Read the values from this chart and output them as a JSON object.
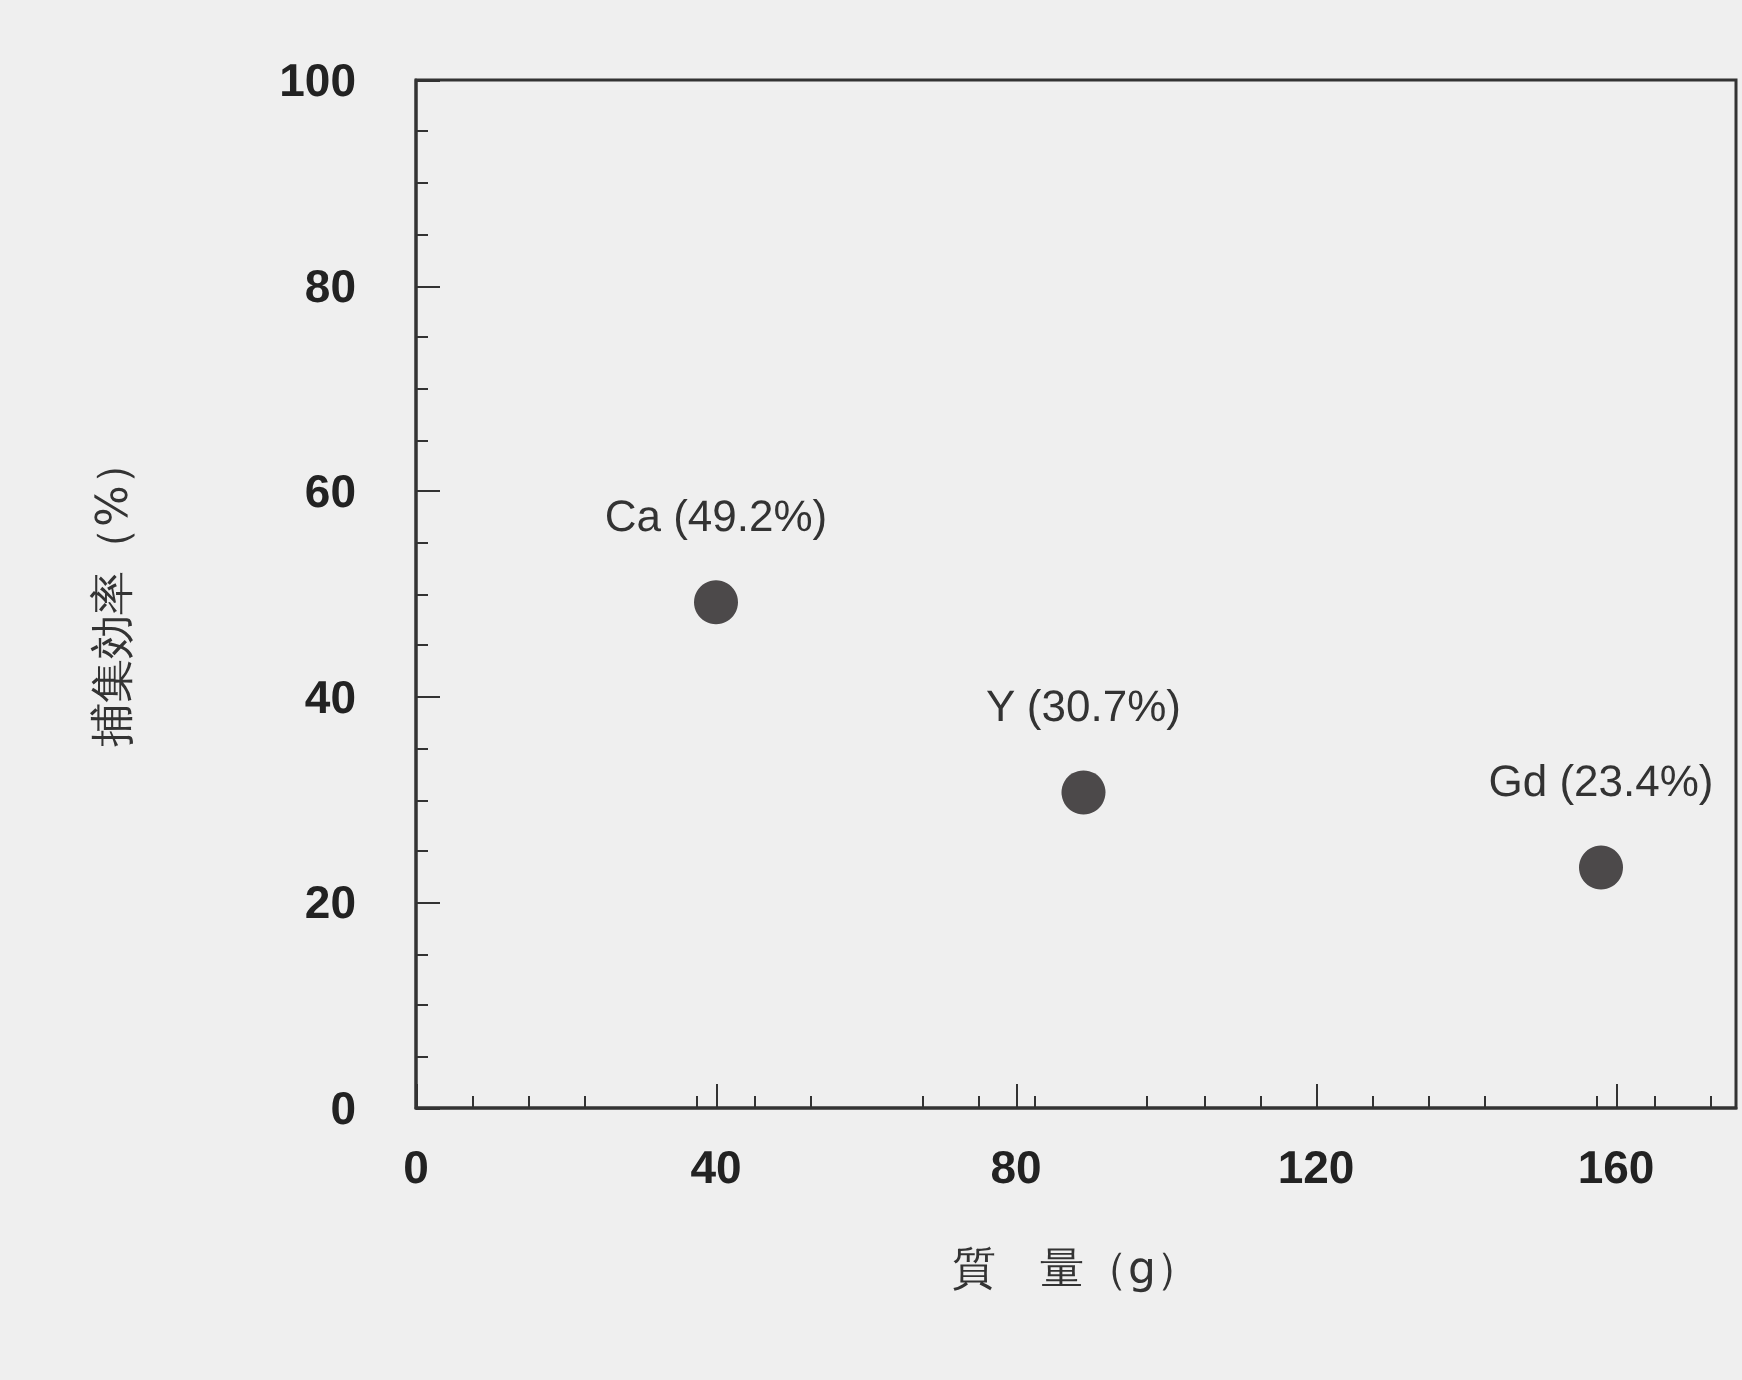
{
  "chart_data": {
    "type": "scatter",
    "xlabel": "質　量（g）",
    "ylabel": "捕集効率（%）",
    "x": [
      40,
      89,
      158
    ],
    "values": [
      49.2,
      30.7,
      23.4
    ],
    "color": "#231f20",
    "marker": "circle",
    "xlim": [
      0,
      176
    ],
    "xticks": [
      0,
      40,
      80,
      120,
      160
    ],
    "ylim": [
      0,
      100
    ],
    "yticks": [
      0,
      20,
      40,
      60,
      80,
      100
    ],
    "annotations": [
      {
        "text": "Ca (49.2%)",
        "x": 40,
        "y": 49.2
      },
      {
        "text": "Y (30.7%)",
        "x": 89,
        "y": 30.7
      },
      {
        "text": "Gd (23.4%)",
        "x": 158,
        "y": 23.4
      }
    ],
    "grid": false
  }
}
